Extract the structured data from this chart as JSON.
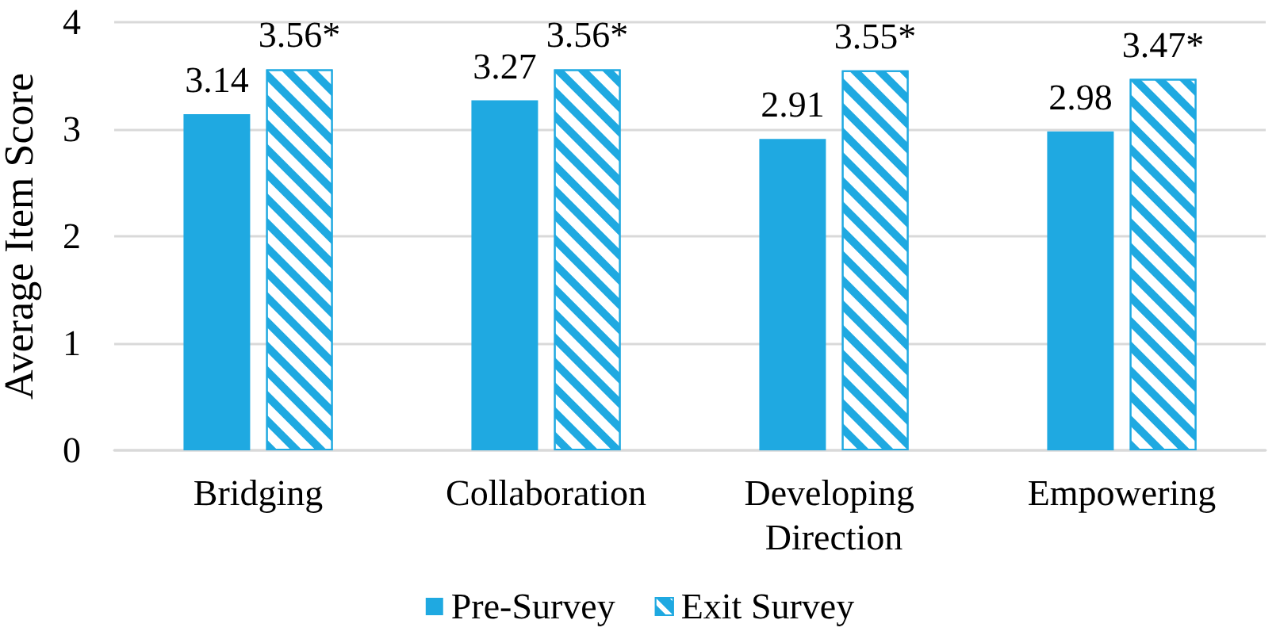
{
  "chart_data": {
    "type": "bar",
    "ylabel": "Average Item Score",
    "categories": [
      "Bridging",
      "Collaboration",
      "Developing Direction",
      "Empowering"
    ],
    "series": [
      {
        "name": "Pre-Survey",
        "color": "#1fa9e1",
        "values": [
          3.14,
          3.27,
          2.91,
          2.98
        ],
        "value_labels": [
          "3.14",
          "3.27",
          "2.91",
          "2.98"
        ]
      },
      {
        "name": "Exit Survey",
        "color": "#1fa9e1",
        "values": [
          3.56,
          3.56,
          3.55,
          3.47
        ],
        "value_labels": [
          "3.56*",
          "3.56*",
          "3.55*",
          "3.47*"
        ]
      }
    ],
    "ylim": [
      0,
      4
    ],
    "yticks": [
      0,
      1,
      2,
      3,
      4
    ],
    "grid": "y",
    "legend": "bottom"
  }
}
